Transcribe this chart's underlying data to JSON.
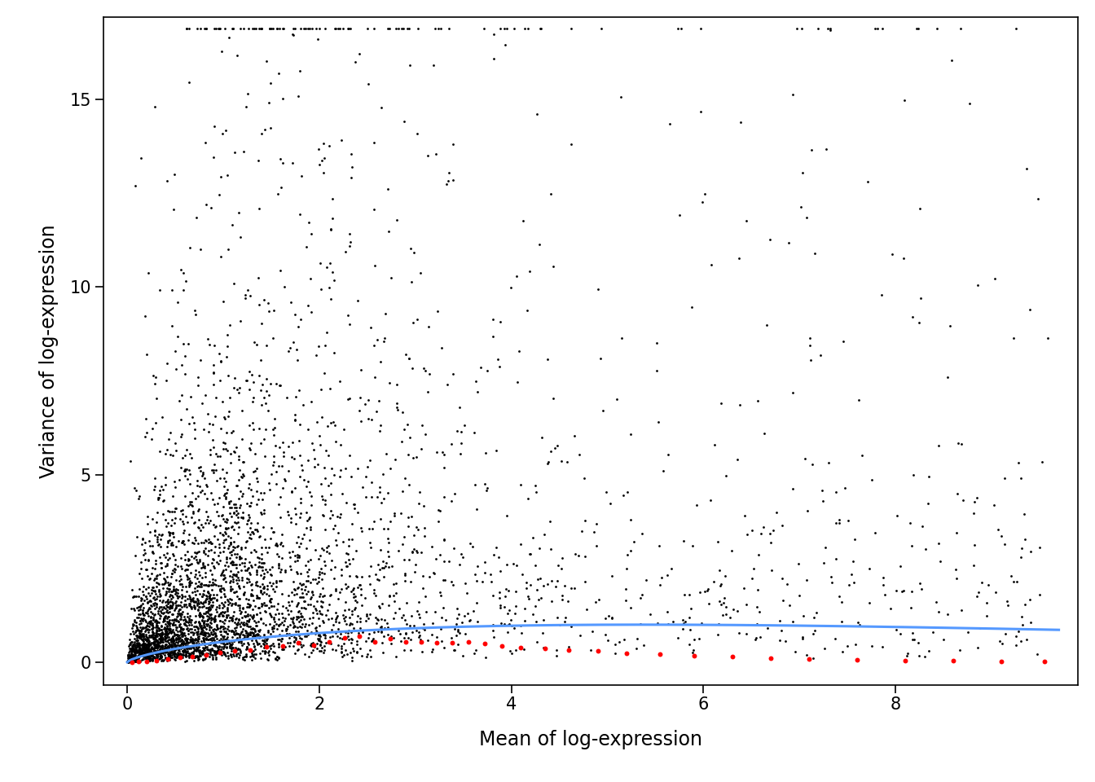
{
  "xlabel": "Mean of log-expression",
  "ylabel": "Variance of log-expression",
  "xlim": [
    -0.25,
    9.9
  ],
  "ylim": [
    -0.6,
    17.2
  ],
  "xticks": [
    0,
    2,
    4,
    6,
    8
  ],
  "yticks": [
    0,
    5,
    10,
    15
  ],
  "gene_color": "#000000",
  "spike_color": "#FF0000",
  "trend_color": "#5599ff",
  "gene_marker_size": 4,
  "spike_marker_size": 18,
  "trend_linewidth": 2.2,
  "xlabel_fontsize": 17,
  "ylabel_fontsize": 17,
  "tick_fontsize": 15,
  "figure_bg": "#ffffff",
  "axes_bg": "#ffffff",
  "seed": 42,
  "n_genes": 4500,
  "special_means": [
    3.82,
    2.32,
    2.14,
    2.08,
    2.21,
    4.45,
    4.52,
    5.05,
    5.2,
    5.4,
    5.8,
    6.7,
    9.5
  ],
  "special_vars": [
    16.75,
    11.2,
    10.4,
    8.8,
    7.5,
    5.7,
    2.5,
    2.3,
    2.5,
    2.2,
    1.8,
    3.2,
    1.8
  ],
  "spike_means": [
    0.05,
    0.12,
    0.2,
    0.3,
    0.42,
    0.55,
    0.68,
    0.82,
    0.97,
    1.12,
    1.28,
    1.45,
    1.62,
    1.78,
    1.94,
    2.1,
    2.26,
    2.42,
    2.58,
    2.74,
    2.9,
    3.06,
    3.22,
    3.38,
    3.55,
    3.72,
    3.9,
    4.1,
    4.35,
    4.6,
    4.9,
    5.2,
    5.55,
    5.9,
    6.3,
    6.7,
    7.1,
    7.6,
    8.1,
    8.6,
    9.1,
    9.55
  ],
  "spike_vars": [
    0.005,
    0.012,
    0.025,
    0.048,
    0.075,
    0.11,
    0.155,
    0.2,
    0.25,
    0.305,
    0.355,
    0.41,
    0.455,
    0.5,
    0.535,
    0.565,
    0.585,
    0.6,
    0.605,
    0.605,
    0.595,
    0.58,
    0.56,
    0.535,
    0.505,
    0.475,
    0.44,
    0.41,
    0.37,
    0.335,
    0.29,
    0.25,
    0.21,
    0.175,
    0.14,
    0.11,
    0.085,
    0.062,
    0.045,
    0.032,
    0.022,
    0.015
  ]
}
